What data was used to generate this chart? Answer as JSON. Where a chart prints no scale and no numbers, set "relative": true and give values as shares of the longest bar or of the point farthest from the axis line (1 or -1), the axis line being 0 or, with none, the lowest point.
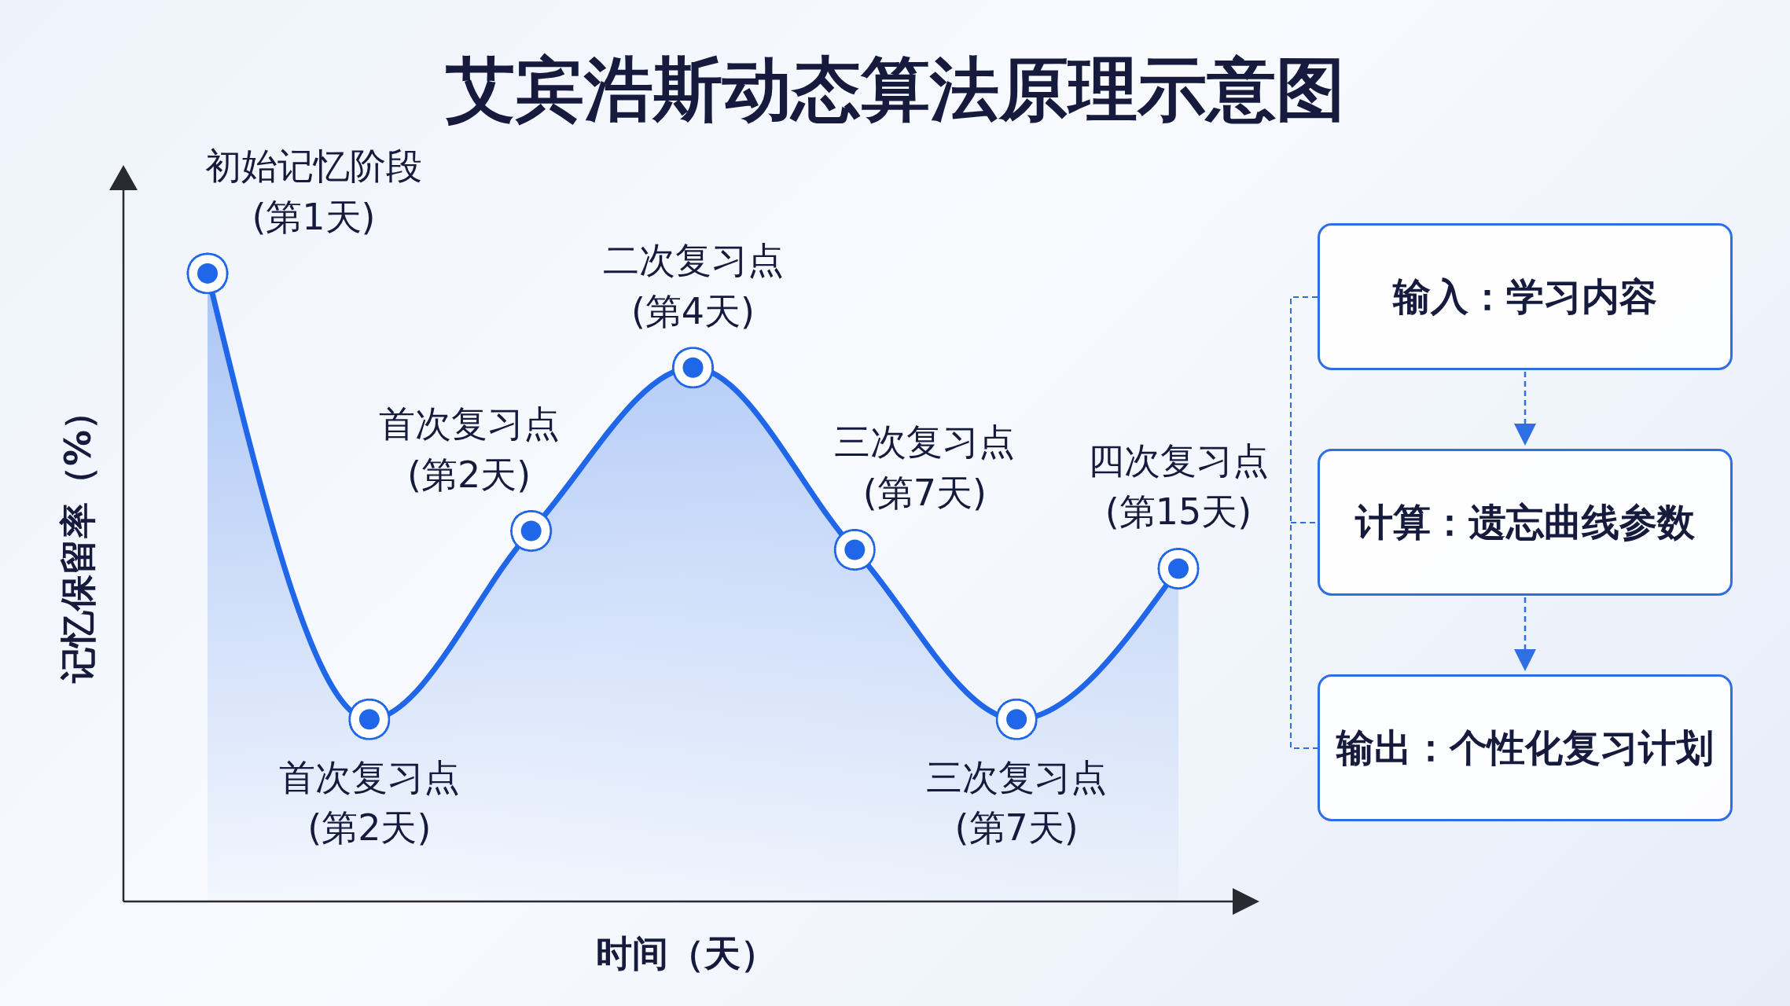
{
  "chart_data": [
    {
      "type": "area",
      "title": "艾宾浩斯动态算法原理示意图",
      "xlabel": "时间（天）",
      "ylabel": "记忆保留率（%）",
      "categories": [
        null,
        null,
        null,
        null,
        null,
        null,
        null
      ],
      "relative": true,
      "series": [
        {
          "color": "#1f66e8",
          "values": [
            1,
            0.29,
            0.59,
            0.85,
            0.56,
            0.29,
            0.53
          ]
        }
      ],
      "marker": "circle",
      "annotations": [
        "初始记忆阶段\n(第1天)",
        "首次复习点\n(第2天)",
        "首次复习点\n(第2天)",
        "二次复习点\n(第4天)",
        "三次复习点\n(第7天)",
        "三次复习点\n(第7天)",
        "四次复习点\n(第15天)"
      ]
    },
    {
      "type": "other",
      "annotations": [
        "输入：学习内容",
        "计算：遗忘曲线参数",
        "输出：个性化复习计划"
      ]
    }
  ]
}
